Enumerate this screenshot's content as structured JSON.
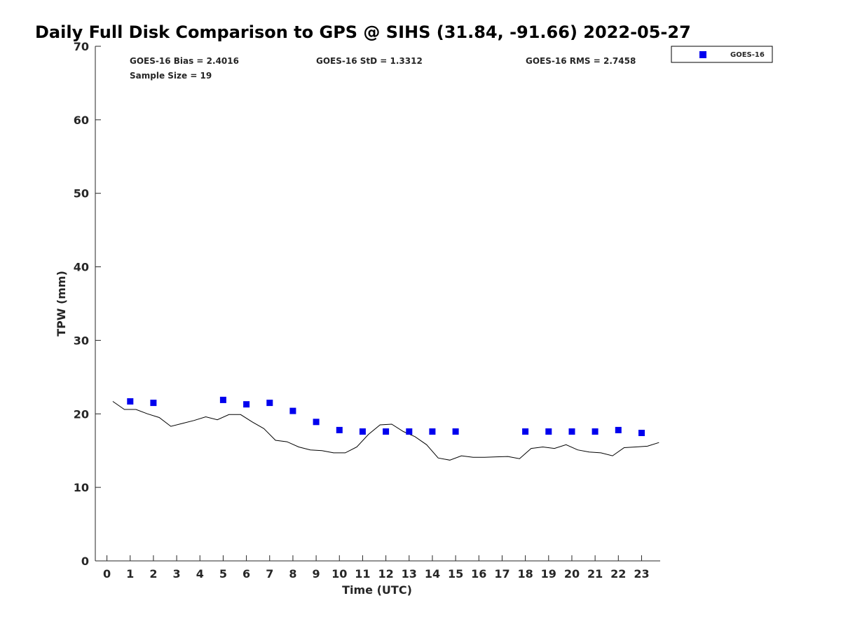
{
  "chart_data": {
    "type": "scatter",
    "title": "Daily Full Disk Comparison to GPS @ SIHS (31.84, -91.66) 2022-05-27",
    "xlabel": "Time (UTC)",
    "ylabel": "TPW (mm)",
    "xlim": [
      -0.5,
      23.8
    ],
    "ylim": [
      0,
      70
    ],
    "x_ticks": [
      0,
      1,
      2,
      3,
      4,
      5,
      6,
      7,
      8,
      9,
      10,
      11,
      12,
      13,
      14,
      15,
      16,
      17,
      18,
      19,
      20,
      21,
      22,
      23
    ],
    "x_tick_labels": [
      "0",
      "1",
      "2",
      "3",
      "4",
      "5",
      "6",
      "7",
      "8",
      "9",
      "10",
      "11",
      "12",
      "13",
      "14",
      "15",
      "16",
      "17",
      "18",
      "19",
      "20",
      "21",
      "22",
      "23"
    ],
    "y_ticks": [
      0,
      10,
      20,
      30,
      40,
      50,
      60,
      70
    ],
    "y_tick_labels": [
      "0",
      "10",
      "20",
      "30",
      "40",
      "50",
      "60",
      "70"
    ],
    "grid": false,
    "legend_position": "top-right",
    "stats": {
      "bias": "GOES-16 Bias = 2.4016",
      "std": "GOES-16 StD = 1.3312",
      "rms": "GOES-16 RMS = 2.7458",
      "sample_size": "Sample Size = 19"
    },
    "series": [
      {
        "name": "GOES-16",
        "kind": "markers",
        "marker": "square",
        "color": "#0000ee",
        "x": [
          1,
          2,
          5,
          6,
          7,
          8,
          9,
          10,
          11,
          12,
          13,
          14,
          15,
          18,
          19,
          20,
          21,
          22,
          23
        ],
        "y": [
          21.7,
          21.5,
          21.9,
          21.3,
          21.5,
          20.4,
          18.9,
          17.8,
          17.6,
          17.6,
          17.6,
          17.6,
          17.6,
          17.6,
          17.6,
          17.6,
          17.6,
          17.8,
          17.4
        ]
      },
      {
        "kind": "line",
        "color": "#000000",
        "x": [
          0.25,
          0.75,
          1.25,
          1.75,
          2.25,
          2.75,
          3.25,
          3.75,
          4.25,
          4.75,
          5.25,
          5.75,
          6.25,
          6.75,
          7.25,
          7.75,
          8.25,
          8.75,
          9.25,
          9.75,
          10.25,
          10.75,
          11.25,
          11.75,
          12.25,
          12.75,
          13.25,
          13.75,
          14.25,
          14.75,
          15.25,
          15.75,
          16.25,
          16.75,
          17.25,
          17.75,
          18.25,
          18.75,
          19.25,
          19.75,
          20.25,
          20.75,
          21.25,
          21.75,
          22.25,
          22.75,
          23.25,
          23.75
        ],
        "y": [
          21.7,
          20.6,
          20.6,
          20.0,
          19.5,
          18.3,
          18.7,
          19.1,
          19.6,
          19.2,
          19.9,
          19.9,
          18.9,
          18.0,
          16.4,
          16.2,
          15.5,
          15.1,
          15.0,
          14.7,
          14.7,
          15.5,
          17.2,
          18.5,
          18.6,
          17.6,
          16.9,
          15.8,
          14.0,
          13.7,
          14.3,
          14.1,
          14.1,
          14.15,
          14.2,
          13.9,
          15.3,
          15.5,
          15.3,
          15.8,
          15.1,
          14.8,
          14.7,
          14.3,
          15.4,
          15.5,
          15.6,
          16.1
        ]
      }
    ]
  }
}
